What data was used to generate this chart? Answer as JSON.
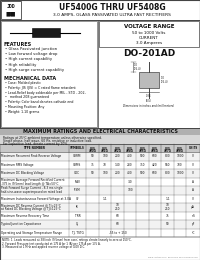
{
  "title_main": "UF5400G THRU UF5408G",
  "title_sub": "3.0 AMPS, GLASS PASSIVATED ULTRA FAST RECTIFIERS",
  "voltage_range_title": "VOLTAGE RANGE",
  "voltage_range_val": "50 to 1000 Volts",
  "current_label": "CURRENT",
  "current_val": "3.0 Amperes",
  "package": "DO-201AD",
  "features_title": "FEATURES",
  "features": [
    "Glass Passivated junction",
    "Low forward voltage drop",
    "High current capability",
    "High reliability",
    "High surge current capability"
  ],
  "mech_title": "MECHANICAL DATA",
  "mech": [
    "Case: Molded plastic",
    "Polarity: JIS (JIS) = C rated flame retardant",
    "Lead-Relief body solderable per MIL - STD - 202,",
    "  method 208 guaranteed",
    "Polarity: Color band denotes cathode end",
    "Mounting Position: Any",
    "Weight: 1.10 grams"
  ],
  "table_title": "MAXIMUM RATINGS AND ELECTRICAL CHARACTERISTICS",
  "table_sub1": "Ratings at 25°C ambient temperature unless otherwise specified.",
  "table_sub2": "Single phase, half wave, 60 Hz, resistive or inductive load.",
  "table_sub3": "For capacitive load, derate current by 20%.",
  "col_headers": [
    "TYPE NUMBER",
    "SYMBOLS",
    "UF5\n400G",
    "UF5\n401G",
    "UF5\n402G",
    "UF5\n404G",
    "UF5\n405G",
    "UF5\n406G",
    "UF5\n407G",
    "UF5\n408G",
    "UNITS"
  ],
  "rows": [
    [
      "Maximum Recurrent Peak Reverse Voltage",
      "VRRM",
      "50",
      "100",
      "200",
      "400",
      "500",
      "600",
      "800",
      "1000",
      "V"
    ],
    [
      "Maximum RMS Voltage",
      "VRMS",
      "35",
      "70",
      "140",
      "280",
      "350",
      "420",
      "560",
      "700",
      "V"
    ],
    [
      "Maximum DC Blocking Voltage",
      "VDC",
      "50",
      "100",
      "200",
      "400",
      "500",
      "600",
      "800",
      "1000",
      "V"
    ],
    [
      "Maximum Average Forward Rectified Current\n.375 in (9.5mm) lead length @ TA=50°C",
      "IFAV",
      "",
      "",
      "",
      "3.0",
      "",
      "",
      "",
      "",
      "A"
    ],
    [
      "Peak Forward Surge Current - 8.3 ms single\nhalf-sine-wave superimposed on rated load",
      "IFSM",
      "",
      "",
      "",
      "100",
      "",
      "",
      "",
      "",
      "A"
    ],
    [
      "Maximum Instantaneous Forward Voltage at 3.0A",
      "VF",
      "",
      "1.1",
      "",
      "",
      "",
      "",
      "1.1",
      "",
      "V"
    ],
    [
      "Maximum DC Reverse Current @ TJ=25°C\nat Rated DC Blocking Voltage @ TJ=125°C",
      "IR",
      "",
      "",
      "10\n250",
      "",
      "",
      "",
      "10\n250",
      "",
      "μA"
    ],
    [
      "Maximum Reverse Recovery Time",
      "TRR",
      "",
      "",
      "60",
      "",
      "",
      "",
      "75",
      "",
      "nS"
    ],
    [
      "Typical Junction Capacitance",
      "CJ",
      "",
      "",
      "60",
      "",
      "",
      "",
      "50",
      "",
      "pF"
    ],
    [
      "Operating and Storage Temperature Range",
      "TJ, TSTG",
      "",
      "",
      "-55 to + 150",
      "",
      "",
      "",
      "",
      "",
      "°C"
    ]
  ],
  "note1": "NOTE: 1. Leads measured at 3/8 inch (9.5mm) from case; ratings derate linearly to zero at 150°C.",
  "note2": "2. Forward Pressure test conducted at 175 A for 1 (A) per 175 A per 175 A.",
  "note3": "3. Measured at 1 MHz and applied reverse voltage of 4.0V D.C.",
  "bg_color": "#e8e8e0",
  "white": "#ffffff",
  "border_color": "#444444",
  "text_color": "#111111",
  "table_header_bg": "#cccccc",
  "table_row_alt": "#f0f0f0"
}
